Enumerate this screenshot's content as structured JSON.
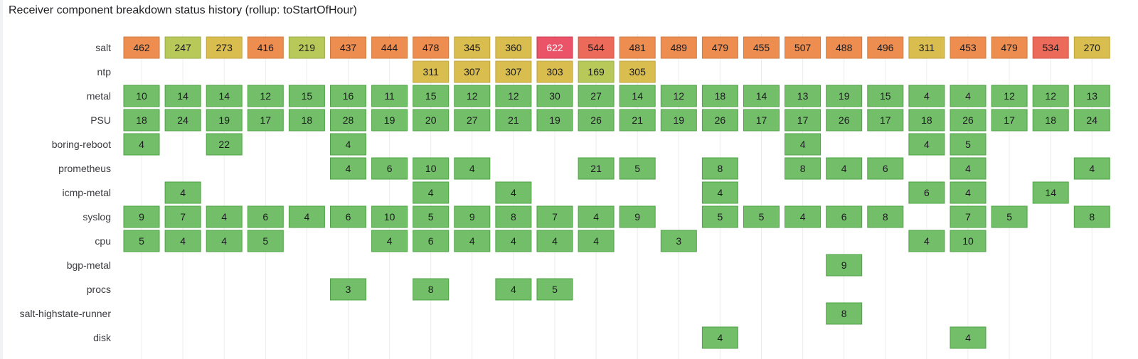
{
  "panel": {
    "title": "Receiver component breakdown status history (rollup: toStartOfHour)"
  },
  "chart_data": {
    "type": "status-history",
    "title": "Receiver component breakdown status history (rollup: toStartOfHour)",
    "rows": [
      "salt",
      "ntp",
      "metal",
      "PSU",
      "boring-reboot",
      "prometheus",
      "icmp-metal",
      "syslog",
      "cpu",
      "bgp-metal",
      "procs",
      "salt-highstate-runner",
      "disk"
    ],
    "num_columns": 24,
    "values": {
      "salt": [
        462,
        247,
        273,
        416,
        219,
        437,
        444,
        478,
        345,
        360,
        622,
        544,
        481,
        489,
        479,
        455,
        507,
        488,
        496,
        311,
        453,
        479,
        534,
        270
      ],
      "ntp": [
        null,
        null,
        null,
        null,
        null,
        null,
        null,
        311,
        307,
        307,
        303,
        169,
        305,
        null,
        null,
        null,
        null,
        null,
        null,
        null,
        null,
        null,
        null,
        null
      ],
      "metal": [
        10,
        14,
        14,
        12,
        15,
        16,
        11,
        15,
        12,
        12,
        30,
        27,
        14,
        12,
        18,
        14,
        13,
        19,
        15,
        4,
        4,
        12,
        12,
        13
      ],
      "PSU": [
        18,
        24,
        19,
        17,
        18,
        28,
        19,
        20,
        27,
        21,
        19,
        26,
        21,
        19,
        26,
        17,
        17,
        26,
        17,
        18,
        26,
        17,
        18,
        24
      ],
      "boring-reboot": [
        4,
        null,
        22,
        null,
        null,
        4,
        null,
        null,
        null,
        null,
        null,
        null,
        null,
        null,
        null,
        null,
        4,
        null,
        null,
        4,
        5,
        null,
        null,
        null
      ],
      "prometheus": [
        null,
        null,
        null,
        null,
        null,
        4,
        6,
        10,
        4,
        null,
        null,
        21,
        5,
        null,
        8,
        null,
        8,
        4,
        6,
        null,
        4,
        null,
        null,
        4
      ],
      "icmp-metal": [
        null,
        4,
        null,
        null,
        null,
        null,
        null,
        4,
        null,
        4,
        null,
        null,
        null,
        null,
        4,
        null,
        null,
        null,
        null,
        6,
        4,
        null,
        14,
        null
      ],
      "syslog": [
        9,
        7,
        4,
        6,
        4,
        6,
        10,
        5,
        9,
        8,
        7,
        4,
        9,
        null,
        5,
        5,
        4,
        6,
        8,
        null,
        7,
        5,
        null,
        8
      ],
      "cpu": [
        5,
        4,
        4,
        5,
        null,
        null,
        4,
        6,
        4,
        4,
        4,
        4,
        null,
        3,
        null,
        null,
        null,
        null,
        null,
        4,
        10,
        null,
        null,
        null
      ],
      "bgp-metal": [
        null,
        null,
        null,
        null,
        null,
        null,
        null,
        null,
        null,
        null,
        null,
        null,
        null,
        null,
        null,
        null,
        null,
        9,
        null,
        null,
        null,
        null,
        null,
        null
      ],
      "procs": [
        null,
        null,
        null,
        null,
        null,
        3,
        null,
        8,
        null,
        4,
        5,
        null,
        null,
        null,
        null,
        null,
        null,
        null,
        null,
        null,
        null,
        null,
        null,
        null
      ],
      "salt-highstate-runner": [
        null,
        null,
        null,
        null,
        null,
        null,
        null,
        null,
        null,
        null,
        null,
        null,
        null,
        null,
        null,
        null,
        null,
        8,
        null,
        null,
        null,
        null,
        null,
        null
      ],
      "disk": [
        null,
        null,
        null,
        null,
        null,
        null,
        null,
        null,
        null,
        null,
        null,
        null,
        null,
        null,
        4,
        null,
        null,
        null,
        null,
        null,
        4,
        null,
        null,
        null
      ]
    },
    "color_scale": {
      "green": "#73bf69",
      "yellow_green": "#b8c95a",
      "yellow": "#d9bd4f",
      "orange": "#ee8d50",
      "red_orange": "#ec6a59",
      "red": "#eb5468"
    },
    "legend": "none",
    "grid": true
  }
}
